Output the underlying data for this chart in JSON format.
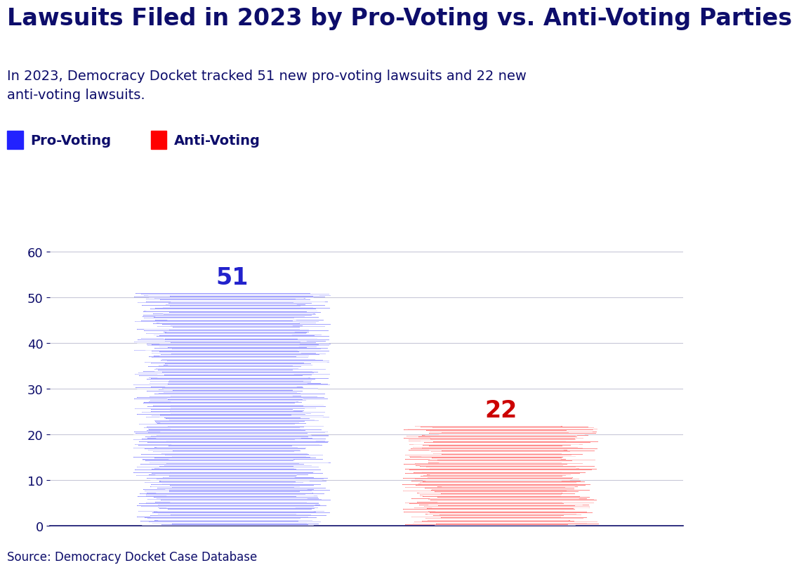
{
  "title": "Lawsuits Filed in 2023 by Pro-Voting vs. Anti-Voting Parties",
  "subtitle": "In 2023, Democracy Docket tracked 51 new pro-voting lawsuits and 22 new\nanti-voting lawsuits.",
  "source": "Source: Democracy Docket Case Database",
  "categories": [
    "Pro-Voting",
    "Anti-Voting"
  ],
  "values": [
    51,
    22
  ],
  "bar_colors": [
    "#3333ff",
    "#ff0000"
  ],
  "bar_light_colors": [
    "#8888ff",
    "#ff7777"
  ],
  "title_color": "#0d0d6b",
  "subtitle_color": "#0d0d6b",
  "grid_color": "#c8c8d8",
  "value_label_colors": [
    "#2222cc",
    "#cc0000"
  ],
  "ylim": [
    0,
    65
  ],
  "yticks": [
    0,
    10,
    20,
    30,
    40,
    50,
    60
  ],
  "legend_colors": [
    "#2222ff",
    "#ff0000"
  ],
  "legend_labels": [
    "Pro-Voting",
    "Anti-Voting"
  ],
  "background_color": "#ffffff",
  "title_fontsize": 24,
  "subtitle_fontsize": 14,
  "value_fontsize": 24,
  "legend_fontsize": 14,
  "tick_fontsize": 13,
  "source_fontsize": 12,
  "bar_positions": [
    0.28,
    0.62
  ],
  "bar_width": 0.2
}
